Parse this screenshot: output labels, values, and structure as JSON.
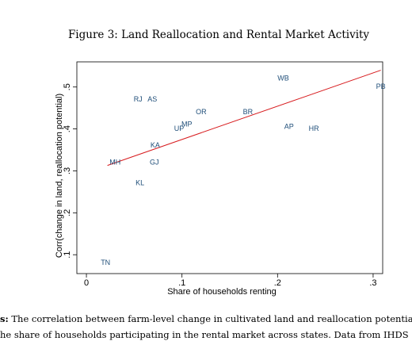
{
  "figure": {
    "title": "Figure 3: Land Reallocation and Rental Market Activity"
  },
  "caption": {
    "lead": "s:",
    "line1": " The correlation between farm-level change in cultivated land and reallocation potentia",
    "line2": "he share of households participating in the rental market across states. Data from IHDS"
  },
  "chart_data": {
    "type": "scatter",
    "xlabel": "Share of households renting",
    "ylabel": "Corr(change in land, reallocation potential)",
    "xlim": [
      -0.01,
      0.31
    ],
    "ylim": [
      0.055,
      0.56
    ],
    "xticks": [
      0,
      0.1,
      0.2,
      0.3
    ],
    "xtick_labels": [
      "0",
      ".1",
      ".2",
      ".3"
    ],
    "yticks": [
      0.1,
      0.2,
      0.3,
      0.4,
      0.5
    ],
    "ytick_labels": [
      ".1",
      ".2",
      ".3",
      ".4",
      ".5"
    ],
    "grid": false,
    "points": [
      {
        "label": "WB",
        "x": 0.206,
        "y": 0.52
      },
      {
        "label": "PB",
        "x": 0.308,
        "y": 0.5
      },
      {
        "label": "RJ",
        "x": 0.054,
        "y": 0.47
      },
      {
        "label": "AS",
        "x": 0.069,
        "y": 0.47
      },
      {
        "label": "OR",
        "x": 0.12,
        "y": 0.44
      },
      {
        "label": "BR",
        "x": 0.169,
        "y": 0.44
      },
      {
        "label": "MP",
        "x": 0.105,
        "y": 0.41
      },
      {
        "label": "UP",
        "x": 0.097,
        "y": 0.4
      },
      {
        "label": "AP",
        "x": 0.212,
        "y": 0.405
      },
      {
        "label": "HR",
        "x": 0.238,
        "y": 0.4
      },
      {
        "label": "KA",
        "x": 0.072,
        "y": 0.36
      },
      {
        "label": "MH",
        "x": 0.03,
        "y": 0.32
      },
      {
        "label": "GJ",
        "x": 0.071,
        "y": 0.32
      },
      {
        "label": "KL",
        "x": 0.056,
        "y": 0.27
      },
      {
        "label": "TN",
        "x": 0.02,
        "y": 0.08
      }
    ],
    "fit_line": {
      "x": [
        0.022,
        0.308
      ],
      "y": [
        0.313,
        0.54
      ],
      "color": "#d7191c"
    },
    "label_color": "#1f4e79"
  }
}
